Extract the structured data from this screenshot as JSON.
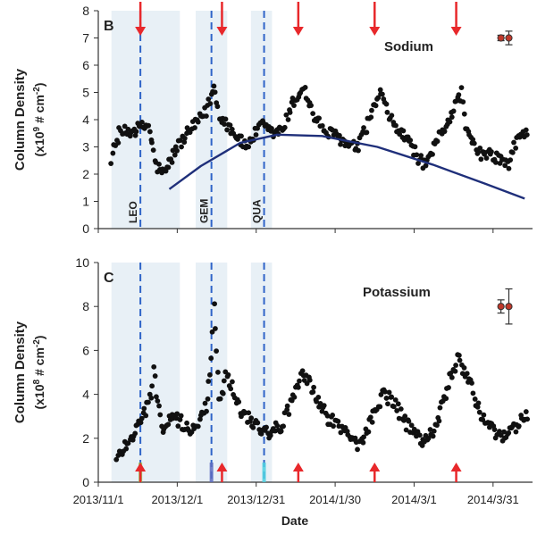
{
  "figure": {
    "xlabel": "Date"
  },
  "colors": {
    "dots": "#111111",
    "trend": "#1f2f7a",
    "shade": "#e8f0f6",
    "dashed": "#2f64c8",
    "arrow": "#e8282b",
    "errpoint": "#c0392b"
  },
  "chart_data": [
    {
      "type": "scatter",
      "panel_letter": "B",
      "title": "Sodium",
      "ylabel_line1": "Column Density",
      "ylabel_line2_pre": "(x10",
      "ylabel_line2_exp": "9",
      "ylabel_line2_post": " # cm",
      "ylabel_line2_exp2": "-2",
      "ylabel_line2_end": ")",
      "ylim": [
        0,
        8
      ],
      "yticks": [
        "0",
        "1",
        "2",
        "3",
        "4",
        "5",
        "6",
        "7",
        "8"
      ],
      "xlim": [
        "2013-11-01",
        "2014-04-15"
      ],
      "shaded_periods": [
        [
          "2013-11-06",
          "2013-12-02"
        ],
        [
          "2013-12-08",
          "2013-12-20"
        ],
        [
          "2013-12-29",
          "2014-01-06"
        ]
      ],
      "meteor_showers": [
        {
          "name": "LEO",
          "date": "2013-11-17"
        },
        {
          "name": "GEM",
          "date": "2013-12-14"
        },
        {
          "name": "QUA",
          "date": "2014-01-03"
        }
      ],
      "arrow_dates": [
        "2013-11-17",
        "2013-12-18",
        "2014-01-16",
        "2014-02-14",
        "2014-03-17"
      ],
      "arrow_direction": "down",
      "trend_line": [
        [
          "2013-11-28",
          1.45
        ],
        [
          "2013-12-10",
          2.3
        ],
        [
          "2013-12-25",
          3.15
        ],
        [
          "2014-01-08",
          3.45
        ],
        [
          "2014-01-25",
          3.4
        ],
        [
          "2014-02-15",
          3.0
        ],
        [
          "2014-03-08",
          2.35
        ],
        [
          "2014-03-28",
          1.65
        ],
        [
          "2014-04-12",
          1.1
        ]
      ],
      "error_bar_points": [
        {
          "date": "2014-04-03",
          "y": 7.0,
          "low": 6.9,
          "high": 7.1
        },
        {
          "date": "2014-04-06",
          "y": 7.0,
          "low": 6.75,
          "high": 7.25
        }
      ],
      "series_knots": [
        [
          "2013-11-06",
          2.6
        ],
        [
          "2013-11-09",
          3.5
        ],
        [
          "2013-11-14",
          3.6
        ],
        [
          "2013-11-17",
          3.7
        ],
        [
          "2013-11-20",
          3.8
        ],
        [
          "2013-11-23",
          2.3
        ],
        [
          "2013-11-26",
          2.0
        ],
        [
          "2013-12-01",
          3.0
        ],
        [
          "2013-12-06",
          3.6
        ],
        [
          "2013-12-12",
          4.3
        ],
        [
          "2013-12-15",
          5.2
        ],
        [
          "2013-12-17",
          4.2
        ],
        [
          "2013-12-22",
          3.6
        ],
        [
          "2013-12-27",
          3.0
        ],
        [
          "2014-01-02",
          3.8
        ],
        [
          "2014-01-06",
          3.5
        ],
        [
          "2014-01-10",
          3.6
        ],
        [
          "2014-01-14",
          4.6
        ],
        [
          "2014-01-18",
          5.2
        ],
        [
          "2014-01-22",
          4.1
        ],
        [
          "2014-01-27",
          3.5
        ],
        [
          "2014-01-31",
          3.4
        ],
        [
          "2014-02-04",
          3.0
        ],
        [
          "2014-02-08",
          3.0
        ],
        [
          "2014-02-12",
          4.0
        ],
        [
          "2014-02-16",
          5.0
        ],
        [
          "2014-02-20",
          4.0
        ],
        [
          "2014-02-24",
          3.5
        ],
        [
          "2014-02-28",
          3.1
        ],
        [
          "2014-03-03",
          2.5
        ],
        [
          "2014-03-06",
          2.3
        ],
        [
          "2014-03-10",
          3.3
        ],
        [
          "2014-03-14",
          4.0
        ],
        [
          "2014-03-19",
          5.0
        ],
        [
          "2014-03-21",
          3.5
        ],
        [
          "2014-03-25",
          2.8
        ],
        [
          "2014-04-02",
          2.6
        ],
        [
          "2014-04-06",
          2.3
        ],
        [
          "2014-04-09",
          3.3
        ],
        [
          "2014-04-13",
          3.6
        ]
      ]
    },
    {
      "type": "scatter",
      "panel_letter": "C",
      "title": "Potassium",
      "ylabel_line1": "Column Density",
      "ylabel_line2_pre": "(x10",
      "ylabel_line2_exp": "8",
      "ylabel_line2_post": " # cm",
      "ylabel_line2_exp2": "-2",
      "ylabel_line2_end": ")",
      "ylim": [
        0,
        10
      ],
      "yticks": [
        "0",
        "2",
        "4",
        "6",
        "8",
        "10"
      ],
      "xlim": [
        "2013-11-01",
        "2014-04-15"
      ],
      "xticks": [
        "2013/11/1",
        "2013/12/1",
        "2013/12/31",
        "2014/1/30",
        "2014/3/1",
        "2014/3/31"
      ],
      "xtick_dates": [
        "2013-11-01",
        "2013-12-01",
        "2013-12-31",
        "2014-01-30",
        "2014-03-01",
        "2014-03-31"
      ],
      "shaded_periods": [
        [
          "2013-11-06",
          "2013-12-02"
        ],
        [
          "2013-12-08",
          "2013-12-20"
        ],
        [
          "2013-12-29",
          "2014-01-06"
        ]
      ],
      "meteor_showers": [
        {
          "name": "",
          "date": "2013-11-17"
        },
        {
          "name": "",
          "date": "2013-12-14"
        },
        {
          "name": "",
          "date": "2014-01-03"
        }
      ],
      "arrow_dates": [
        "2013-11-17",
        "2013-12-18",
        "2014-01-16",
        "2014-02-14",
        "2014-03-17"
      ],
      "arrow_direction": "up",
      "error_bar_points": [
        {
          "date": "2014-04-03",
          "y": 8.0,
          "low": 7.7,
          "high": 8.3
        },
        {
          "date": "2014-04-06",
          "y": 8.0,
          "low": 7.2,
          "high": 8.8
        }
      ],
      "series_knots": [
        [
          "2013-11-08",
          1.0
        ],
        [
          "2013-11-11",
          1.7
        ],
        [
          "2013-11-15",
          2.3
        ],
        [
          "2013-11-18",
          3.0
        ],
        [
          "2013-11-21",
          4.0
        ],
        [
          "2013-11-22",
          5.0
        ],
        [
          "2013-11-25",
          2.5
        ],
        [
          "2013-11-30",
          2.9
        ],
        [
          "2013-12-04",
          2.6
        ],
        [
          "2013-12-08",
          2.3
        ],
        [
          "2013-12-12",
          3.5
        ],
        [
          "2013-12-14",
          5.5
        ],
        [
          "2013-12-15",
          8.4
        ],
        [
          "2013-12-17",
          3.5
        ],
        [
          "2013-12-20",
          5.0
        ],
        [
          "2013-12-25",
          3.3
        ],
        [
          "2013-12-31",
          2.6
        ],
        [
          "2014-01-05",
          2.3
        ],
        [
          "2014-01-10",
          2.6
        ],
        [
          "2014-01-14",
          3.8
        ],
        [
          "2014-01-18",
          5.0
        ],
        [
          "2014-01-22",
          4.0
        ],
        [
          "2014-01-27",
          3.0
        ],
        [
          "2014-02-03",
          2.3
        ],
        [
          "2014-02-08",
          1.7
        ],
        [
          "2014-02-12",
          2.6
        ],
        [
          "2014-02-17",
          4.0
        ],
        [
          "2014-02-21",
          3.7
        ],
        [
          "2014-02-25",
          2.8
        ],
        [
          "2014-03-01",
          2.2
        ],
        [
          "2014-03-04",
          1.9
        ],
        [
          "2014-03-09",
          2.4
        ],
        [
          "2014-03-14",
          4.5
        ],
        [
          "2014-03-18",
          5.7
        ],
        [
          "2014-03-21",
          4.8
        ],
        [
          "2014-03-27",
          3.0
        ],
        [
          "2014-04-02",
          2.0
        ],
        [
          "2014-04-05",
          2.0
        ],
        [
          "2014-04-09",
          2.6
        ],
        [
          "2014-04-13",
          3.1
        ]
      ]
    }
  ]
}
